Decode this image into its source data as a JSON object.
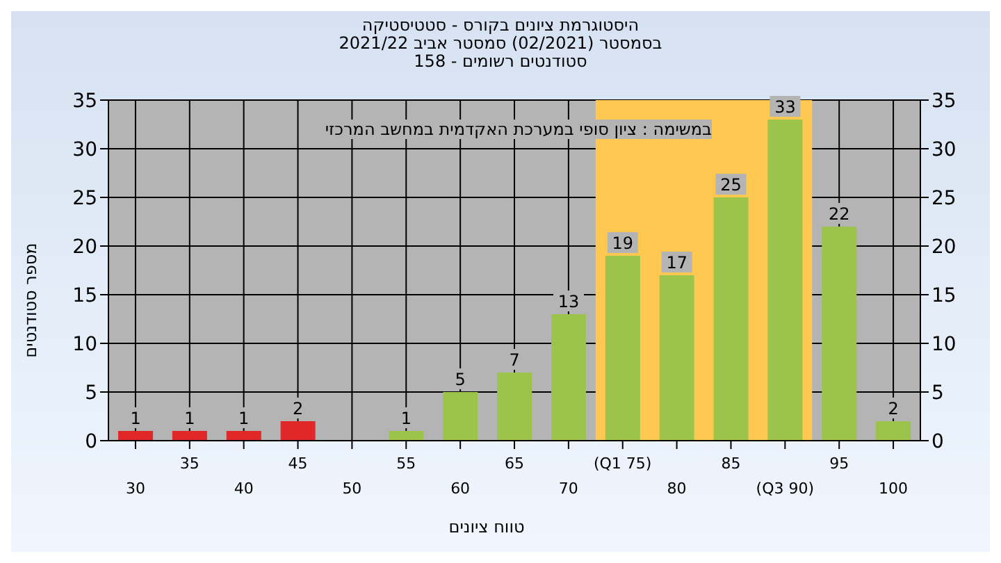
{
  "chart_data": {
    "type": "bar",
    "title": "היסטוגרמת ציונים בקורס - סטטיסטיקה",
    "subtitle": "בסמסטר (02/2021) סמסטר אביב 2021/22\nסטודנטים רשומים - 158",
    "xlabel": "טווח ציונים",
    "ylabel": "מספר סטודנטים",
    "annotations": [
      "במשימה : ציון סופי במערכת האקדמית במחשב המרכזי"
    ],
    "categories": [
      "30",
      "35",
      "40",
      "45",
      "50",
      "55",
      "60",
      "65",
      "70",
      "(Q1 75)",
      "80",
      "85",
      "(Q3 90)",
      "95",
      "100"
    ],
    "values": [
      1,
      1,
      1,
      2,
      0,
      1,
      5,
      7,
      13,
      19,
      17,
      25,
      33,
      22,
      2
    ],
    "colors": [
      "#e02828",
      "#e02828",
      "#e02828",
      "#e02828",
      "#9cc44c",
      "#9cc44c",
      "#9cc44c",
      "#9cc44c",
      "#9cc44c",
      "#9cc44c",
      "#9cc44c",
      "#9cc44c",
      "#9cc44c",
      "#9cc44c",
      "#9cc44c"
    ],
    "value_labels": [
      "1",
      "1",
      "1",
      "2",
      null,
      "1",
      "5",
      "7",
      "13",
      "19",
      "17",
      "25",
      "33",
      "22",
      "2"
    ],
    "ylim": [
      0,
      35
    ],
    "yticks": [
      0,
      5,
      10,
      15,
      20,
      25,
      30,
      35
    ],
    "y2lim": [
      0,
      35
    ],
    "y2ticks": [
      0,
      5,
      10,
      15,
      20,
      25,
      30,
      35
    ],
    "bands": [
      {
        "axis": "x",
        "from": "(Q1 75)",
        "to": "(Q3 90)",
        "color": "#ffc850"
      }
    ],
    "grid": true
  }
}
